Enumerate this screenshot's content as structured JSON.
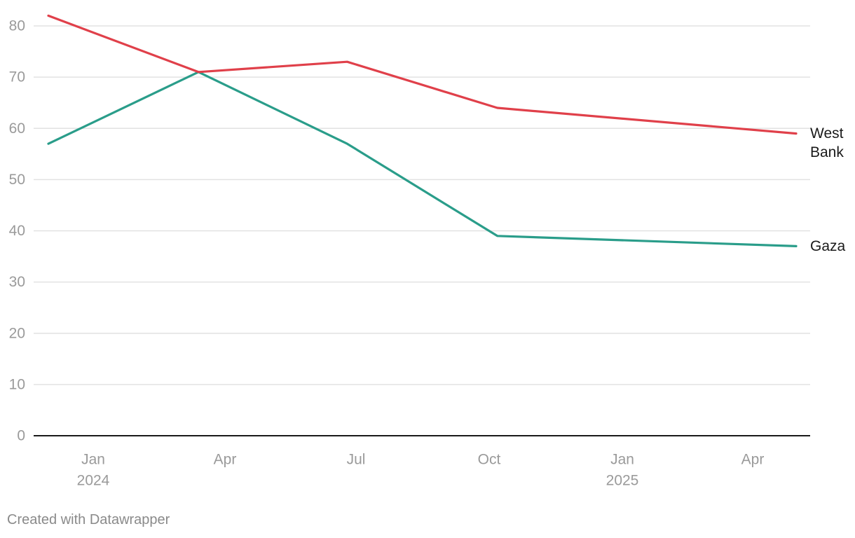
{
  "chart_data": {
    "type": "line",
    "title": "",
    "xlabel": "",
    "ylabel": "",
    "ylim": [
      0,
      80
    ],
    "y_ticks": [
      0,
      10,
      20,
      30,
      40,
      50,
      60,
      70,
      80
    ],
    "grid": true,
    "x_range": [
      "2023-11-01",
      "2025-05-01"
    ],
    "x_ticks": [
      {
        "date": "2024-01-01",
        "label": "Jan",
        "sublabel": "2024"
      },
      {
        "date": "2024-04-01",
        "label": "Apr",
        "sublabel": ""
      },
      {
        "date": "2024-07-01",
        "label": "Jul",
        "sublabel": ""
      },
      {
        "date": "2024-10-01",
        "label": "Oct",
        "sublabel": ""
      },
      {
        "date": "2025-01-01",
        "label": "Jan",
        "sublabel": "2025"
      },
      {
        "date": "2025-04-01",
        "label": "Apr",
        "sublabel": ""
      }
    ],
    "series": [
      {
        "name": "West Bank",
        "label_lines": [
          "West",
          "Bank"
        ],
        "color": "#e0404a",
        "points": [
          {
            "x": "2023-11-15",
            "y": 82
          },
          {
            "x": "2024-03-01",
            "y": 71
          },
          {
            "x": "2024-06-15",
            "y": 73
          },
          {
            "x": "2024-09-30",
            "y": 64
          },
          {
            "x": "2025-05-01",
            "y": 59
          }
        ]
      },
      {
        "name": "Gaza",
        "label_lines": [
          "Gaza"
        ],
        "color": "#2a9d8a",
        "points": [
          {
            "x": "2023-11-15",
            "y": 57
          },
          {
            "x": "2024-03-01",
            "y": 71
          },
          {
            "x": "2024-06-15",
            "y": 57
          },
          {
            "x": "2024-09-30",
            "y": 39
          },
          {
            "x": "2025-05-01",
            "y": 37
          }
        ]
      }
    ]
  },
  "footer": {
    "credit": "Created with Datawrapper"
  }
}
